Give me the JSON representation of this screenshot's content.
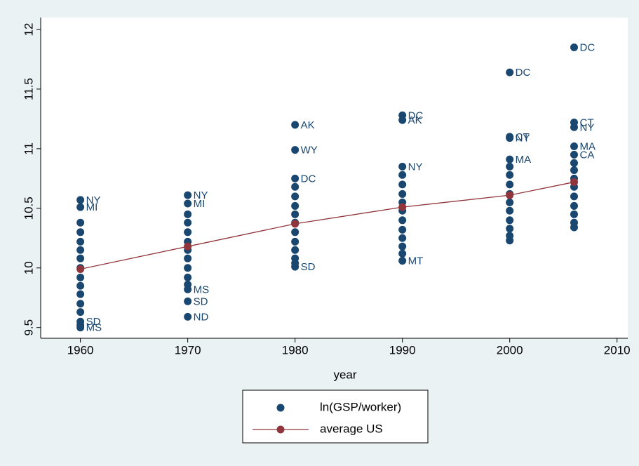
{
  "chart_data": {
    "type": "scatter",
    "xlabel": "year",
    "xlim": [
      1956.3,
      2011
    ],
    "ylim": [
      9.41,
      12.1
    ],
    "xticks": [
      1960,
      1970,
      1980,
      1990,
      2000,
      2010
    ],
    "yticks": [
      9.5,
      10,
      10.5,
      11,
      11.5,
      12
    ],
    "series": [
      {
        "name": "ln(GSP/worker)",
        "color": "#1a476f",
        "kind": "scatter",
        "x": [
          1960,
          1960,
          1960,
          1960,
          1960,
          1960,
          1960,
          1960,
          1960,
          1960,
          1960,
          1960,
          1960,
          1960,
          1960,
          1960,
          1970,
          1970,
          1970,
          1970,
          1970,
          1970,
          1970,
          1970,
          1970,
          1970,
          1970,
          1970,
          1970,
          1970,
          1980,
          1980,
          1980,
          1980,
          1980,
          1980,
          1980,
          1980,
          1980,
          1980,
          1980,
          1980,
          1980,
          1980,
          1990,
          1990,
          1990,
          1990,
          1990,
          1990,
          1990,
          1990,
          1990,
          1990,
          1990,
          1990,
          1990,
          1990,
          2000,
          2000,
          2000,
          2000,
          2000,
          2000,
          2000,
          2000,
          2000,
          2000,
          2000,
          2000,
          2000,
          2000,
          2006,
          2006,
          2006,
          2006,
          2006,
          2006,
          2006,
          2006,
          2006,
          2006,
          2006,
          2006,
          2006,
          2006
        ],
        "values": [
          10.57,
          10.51,
          9.55,
          9.5,
          10.38,
          10.3,
          10.22,
          10.15,
          10.08,
          10,
          9.92,
          9.85,
          9.78,
          9.7,
          9.63,
          9.52,
          10.61,
          10.54,
          9.82,
          9.72,
          9.59,
          10.45,
          10.38,
          10.3,
          10.22,
          10.15,
          10.08,
          10,
          9.92,
          9.86,
          11.2,
          10.99,
          10.75,
          10.01,
          10.68,
          10.6,
          10.52,
          10.45,
          10.38,
          10.3,
          10.22,
          10.15,
          10.08,
          10.04,
          11.28,
          11.24,
          10.85,
          10.06,
          10.78,
          10.7,
          10.62,
          10.55,
          10.48,
          10.4,
          10.32,
          10.25,
          10.18,
          10.12,
          11.64,
          11.1,
          11.09,
          10.91,
          10.85,
          10.78,
          10.7,
          10.62,
          10.55,
          10.48,
          10.4,
          10.33,
          10.27,
          10.23,
          11.85,
          11.22,
          11.18,
          11.02,
          10.95,
          10.88,
          10.82,
          10.75,
          10.68,
          10.6,
          10.52,
          10.45,
          10.38,
          10.34
        ],
        "labels": [
          "NY",
          "MI",
          "SD",
          "MS",
          null,
          null,
          null,
          null,
          null,
          null,
          null,
          null,
          null,
          null,
          null,
          null,
          "NY",
          "MI",
          "MS",
          "SD",
          "ND",
          null,
          null,
          null,
          null,
          null,
          null,
          null,
          null,
          null,
          "AK",
          "WY",
          "DC",
          "SD",
          null,
          null,
          null,
          null,
          null,
          null,
          null,
          null,
          null,
          null,
          "DC",
          "AK",
          "NY",
          "MT",
          null,
          null,
          null,
          null,
          null,
          null,
          null,
          null,
          null,
          null,
          "DC",
          "CT",
          "NY",
          "MA",
          null,
          null,
          null,
          null,
          null,
          null,
          null,
          null,
          null,
          null,
          "DC",
          "CT",
          "NY",
          "MA",
          "CA",
          null,
          null,
          null,
          null,
          null,
          null,
          null,
          null,
          null
        ]
      },
      {
        "name": "average US",
        "color": "#90353b",
        "kind": "line",
        "x": [
          1960,
          1970,
          1980,
          1990,
          2000,
          2006
        ],
        "values": [
          9.99,
          10.18,
          10.37,
          10.51,
          10.61,
          10.72
        ]
      }
    ]
  }
}
